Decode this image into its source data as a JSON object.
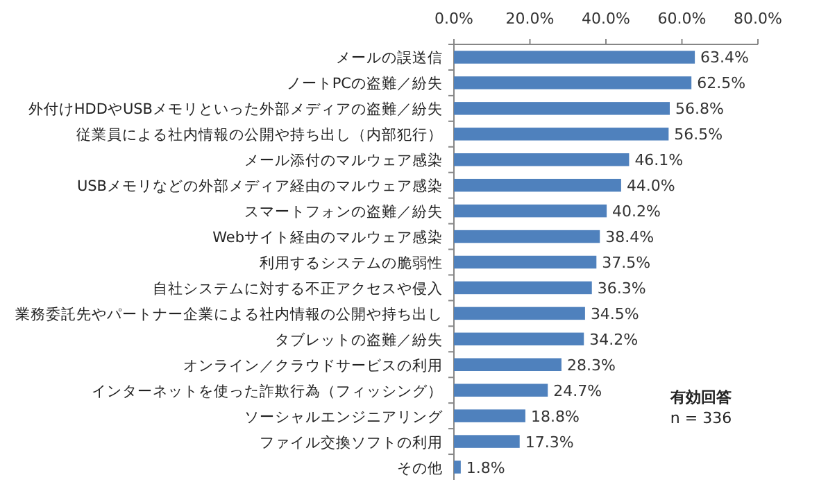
{
  "chart_data": {
    "type": "bar",
    "orientation": "horizontal",
    "categories": [
      "メールの誤送信",
      "ノートPCの盗難／紛失",
      "外付けHDDやUSBメモリといった外部メディアの盗難／紛失",
      "従業員による社内情報の公開や持ち出し（内部犯行）",
      "メール添付のマルウェア感染",
      "USBメモリなどの外部メディア経由のマルウェア感染",
      "スマートフォンの盗難／紛失",
      "Webサイト経由のマルウェア感染",
      "利用するシステムの脆弱性",
      "自社システムに対する不正アクセスや侵入",
      "業務委託先やパートナー企業による社内情報の公開や持ち出し",
      "タブレットの盗難／紛失",
      "オンライン／クラウドサービスの利用",
      "インターネットを使った詐欺行為（フィッシング）",
      "ソーシャルエンジニアリング",
      "ファイル交換ソフトの利用",
      "その他"
    ],
    "values": [
      63.4,
      62.5,
      56.8,
      56.5,
      46.1,
      44.0,
      40.2,
      38.4,
      37.5,
      36.3,
      34.5,
      34.2,
      28.3,
      24.7,
      18.8,
      17.3,
      1.8
    ],
    "value_labels": [
      "63.4%",
      "62.5%",
      "56.8%",
      "56.5%",
      "46.1%",
      "44.0%",
      "40.2%",
      "38.4%",
      "37.5%",
      "36.3%",
      "34.5%",
      "34.2%",
      "28.3%",
      "24.7%",
      "18.8%",
      "17.3%",
      "1.8%"
    ],
    "color": "#4f81bd",
    "xlim": [
      0,
      80
    ],
    "xticks": [
      {
        "value": 0,
        "label": "0.0%"
      },
      {
        "value": 20,
        "label": "20.0%"
      },
      {
        "value": 40,
        "label": "40.0%"
      },
      {
        "value": 60,
        "label": "60.0%"
      },
      {
        "value": 80,
        "label": "80.0%"
      }
    ],
    "grid": false,
    "annotations": [
      "有効回答",
      "n = 336"
    ]
  }
}
